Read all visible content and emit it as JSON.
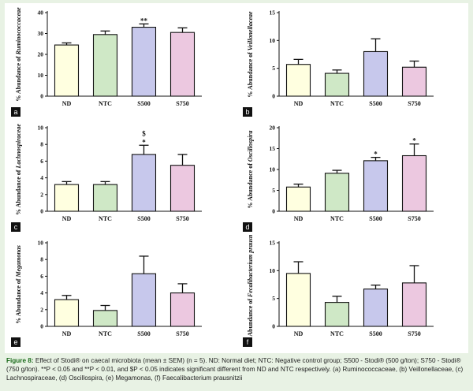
{
  "figure": {
    "caption_label": "Figure 8:",
    "caption_text": "Effect of Stodi® on caecal microbiota (mean ± SEM) (n = 5). ND: Normal diet; NTC: Negative control group; S500 - Stodi® (500 g/ton); S750 - Stodi® (750 g/ton). **P < 0.05 and **P < 0.01, and $P < 0.05 indicates significant different from ND and NTC respectively. (a) Ruminococcaceae, (b) Veillonellaceae, (c) Lachnospiraceae, (d) Oscillospira, (e) Megamonas, (f) Faecalibacterium prausnitzii"
  },
  "colors": {
    "ND": "#ffffe0",
    "NTC": "#cfe8c6",
    "S500": "#c7c8ec",
    "S750": "#ecc8e0",
    "page_bg": "#e8f2e4",
    "caption_label": "#1a6a1a"
  },
  "chart_data": [
    {
      "panel": "a",
      "type": "bar",
      "ylabel": "% Abundance of Ruminococcaceae",
      "categories": [
        "ND",
        "NTC",
        "S500",
        "S750"
      ],
      "values": [
        24.5,
        29.5,
        33.0,
        30.5
      ],
      "errors": [
        1.0,
        1.7,
        1.6,
        2.2
      ],
      "annotations": [
        "",
        "",
        "**",
        ""
      ],
      "ylim": [
        0,
        40
      ],
      "yticks": [
        0,
        10,
        20,
        30,
        40
      ]
    },
    {
      "panel": "b",
      "type": "bar",
      "ylabel": "% Abundance of Veillonellaceae",
      "categories": [
        "ND",
        "NTC",
        "S500",
        "S750"
      ],
      "values": [
        5.7,
        4.1,
        8.0,
        5.2
      ],
      "errors": [
        0.9,
        0.6,
        2.3,
        1.1
      ],
      "annotations": [
        "",
        "",
        "",
        ""
      ],
      "ylim": [
        0,
        15
      ],
      "yticks": [
        0,
        5,
        10,
        15
      ]
    },
    {
      "panel": "c",
      "type": "bar",
      "ylabel": "% Abundance of Lachnospiraceae",
      "categories": [
        "ND",
        "NTC",
        "S500",
        "S750"
      ],
      "values": [
        3.2,
        3.2,
        6.8,
        5.5
      ],
      "errors": [
        0.35,
        0.35,
        1.1,
        1.3
      ],
      "annotations": [
        "",
        "",
        "*",
        ""
      ],
      "annotations2": [
        "",
        "",
        "$",
        ""
      ],
      "ylim": [
        0,
        10
      ],
      "yticks": [
        0,
        2,
        4,
        6,
        8,
        10
      ]
    },
    {
      "panel": "d",
      "type": "bar",
      "ylabel": "% Abundance of Oscillospira",
      "categories": [
        "ND",
        "NTC",
        "S500",
        "S750"
      ],
      "values": [
        5.8,
        9.1,
        12.1,
        13.3
      ],
      "errors": [
        0.7,
        0.7,
        0.8,
        2.8
      ],
      "annotations": [
        "",
        "",
        "*",
        "*"
      ],
      "ylim": [
        0,
        20
      ],
      "yticks": [
        0,
        5,
        10,
        15,
        20
      ]
    },
    {
      "panel": "e",
      "type": "bar",
      "ylabel": "% Abundance of Megamonas",
      "categories": [
        "ND",
        "NTC",
        "S500",
        "S750"
      ],
      "values": [
        3.2,
        1.9,
        6.3,
        4.0
      ],
      "errors": [
        0.5,
        0.6,
        2.1,
        1.1
      ],
      "annotations": [
        "",
        "",
        "",
        ""
      ],
      "ylim": [
        0,
        10
      ],
      "yticks": [
        0,
        2,
        4,
        6,
        8,
        10
      ]
    },
    {
      "panel": "f",
      "type": "bar",
      "ylabel": "% Abundance of Fecalibacterium prausnitzii",
      "categories": [
        "ND",
        "NTC",
        "S500",
        "S750"
      ],
      "values": [
        9.5,
        4.3,
        6.7,
        7.8
      ],
      "errors": [
        2.1,
        1.1,
        0.7,
        3.1
      ],
      "annotations": [
        "",
        "",
        "",
        ""
      ],
      "ylim": [
        0,
        15
      ],
      "yticks": [
        0,
        5,
        10,
        15
      ]
    }
  ]
}
